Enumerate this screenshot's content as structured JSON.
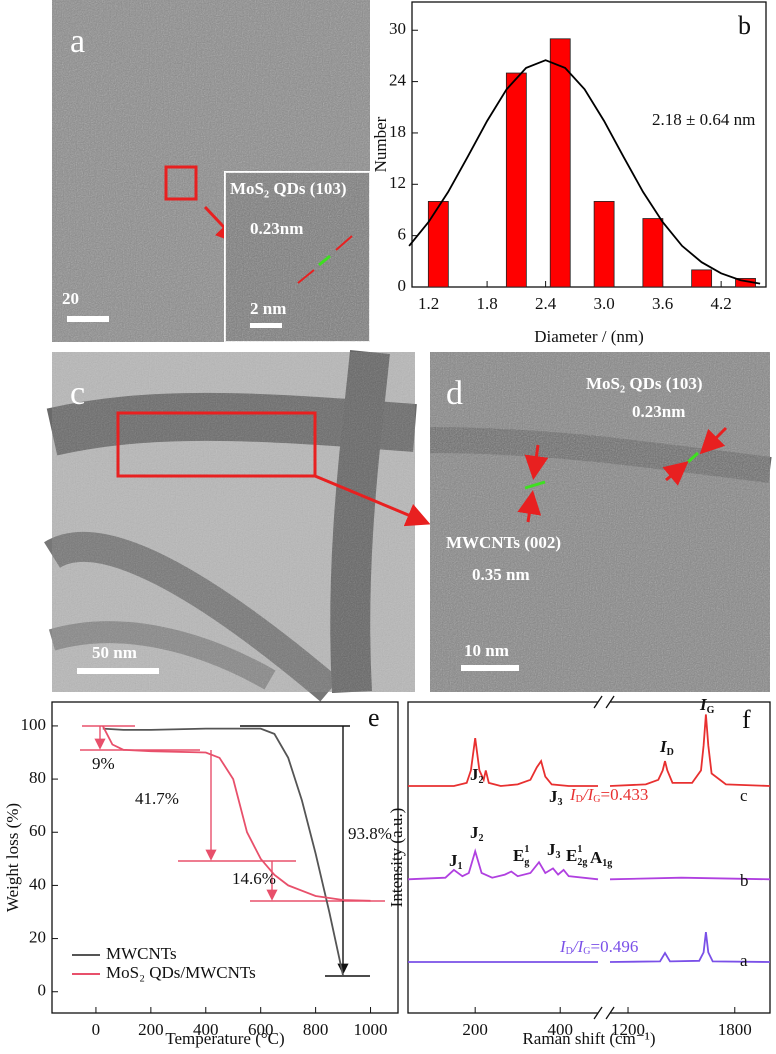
{
  "images": [
    {
      "label": "a",
      "scale_bar": "20",
      "inset": {
        "title": "MoS₂ QDs (103)",
        "spacing": "0.23nm",
        "scale_bar": "2 nm"
      }
    },
    {
      "label": "c",
      "scale_bar": "50 nm"
    },
    {
      "label": "d",
      "annotations": [
        "MoS₂ QDs (103)",
        "0.23nm",
        "MWCNTs (002)",
        "0.35 nm"
      ],
      "scale_bar": "10 nm"
    }
  ],
  "chart_data": [
    {
      "type": "bar",
      "label": "b",
      "xlabel": "Diameter / (nm)",
      "ylabel": "Number",
      "annotation": "2.18 ± 0.64 nm",
      "color": "#ff0000",
      "x": [
        1.3,
        2.1,
        2.55,
        3.0,
        3.5,
        4.0,
        4.45
      ],
      "values": [
        10,
        25,
        29,
        10,
        8,
        2,
        1
      ],
      "fit": {
        "color": "#000000",
        "x": [
          1.0,
          1.2,
          1.4,
          1.6,
          1.8,
          2.0,
          2.2,
          2.4,
          2.6,
          2.8,
          3.0,
          3.2,
          3.4,
          3.6,
          3.8,
          4.0,
          4.2,
          4.4,
          4.6
        ],
        "values": [
          4.8,
          7.6,
          11.1,
          15.2,
          19.4,
          23.1,
          25.6,
          26.5,
          25.6,
          23.1,
          19.4,
          15.2,
          11.1,
          7.6,
          4.8,
          2.9,
          1.6,
          0.8,
          0.4
        ]
      },
      "xlim": [
        1.03,
        4.66
      ],
      "ylim": [
        0,
        33.3
      ],
      "xticks": [
        1.2,
        1.8,
        2.4,
        {
          "value": 3,
          "label": "3.0"
        },
        3.6,
        4.2
      ],
      "yticks": [
        0,
        6,
        12,
        18,
        24,
        30
      ]
    },
    {
      "type": "line",
      "label": "e",
      "xlabel": "Temperature (°C)",
      "ylabel": "Weight loss (%)",
      "xlim": [
        -160,
        1100
      ],
      "ylim": [
        -8,
        109
      ],
      "xticks": [
        0,
        200,
        400,
        600,
        800,
        1000
      ],
      "yticks": [
        0,
        20,
        40,
        60,
        80,
        100
      ],
      "legend": "lower left",
      "annotations": [
        "9%",
        "41.7%",
        "14.6%",
        "93.8%"
      ],
      "series": [
        {
          "name": "MWCNTs",
          "color": "#555555",
          "x": [
            25,
            100,
            200,
            400,
            600,
            650,
            700,
            750,
            800,
            850,
            900
          ],
          "values": [
            99,
            98.5,
            98.5,
            99,
            99,
            97,
            88,
            72,
            52,
            30,
            6
          ]
        },
        {
          "name": "MoS₂ QDs/MWCNTs",
          "color": "#e8506b",
          "x": [
            25,
            60,
            100,
            200,
            400,
            450,
            500,
            550,
            600,
            650,
            700,
            800,
            900,
            1000
          ],
          "values": [
            100,
            93,
            91,
            90.5,
            90,
            88,
            80,
            60,
            50,
            44,
            40,
            36,
            34.5,
            34.2
          ]
        }
      ]
    },
    {
      "type": "line",
      "label": "f",
      "xlabel": "Raman shift (cm⁻¹)",
      "ylabel": "Intensity (a.u.)",
      "xlim": [
        42,
        1998
      ],
      "xbreak": [
        489,
        1099
      ],
      "ylim": [
        0,
        100
      ],
      "xticks": [
        200,
        400,
        1200,
        1800
      ],
      "series": [
        {
          "name": "c",
          "color": "#e83030",
          "x": [
            42,
            150,
            180,
            190,
            200,
            210,
            220,
            225,
            232,
            260,
            300,
            330,
            345,
            355,
            365,
            380,
            420,
            489,
            null,
            1099,
            1300,
            1370,
            1395,
            1408,
            1421,
            1450,
            1560,
            1610,
            1625,
            1638,
            1651,
            1670,
            1750,
            1998
          ],
          "values": [
            73,
            73,
            74,
            78,
            88.4,
            78,
            75,
            78,
            74,
            73,
            73.5,
            75,
            79,
            81,
            76,
            73.5,
            73,
            73,
            null,
            73,
            73.5,
            75,
            78,
            81,
            78,
            74,
            74,
            78,
            86,
            96,
            86,
            77,
            73.5,
            73
          ]
        },
        {
          "name": "b",
          "color": "#b040e0",
          "x": [
            42,
            130,
            150,
            170,
            185,
            200,
            215,
            240,
            270,
            285,
            300,
            330,
            350,
            365,
            383,
            395,
            408,
            420,
            489,
            null,
            1099,
            1500,
            1998
          ],
          "values": [
            43,
            43.5,
            46,
            44,
            45,
            52,
            45,
            43.5,
            44.5,
            45.5,
            44,
            45,
            48.5,
            45,
            46.5,
            44.5,
            46,
            44,
            43,
            null,
            43,
            43.5,
            43
          ]
        },
        {
          "name": "a",
          "color": "#7a50e8",
          "x": [
            42,
            489,
            null,
            1099,
            1380,
            1408,
            1436,
            1600,
            1625,
            1638,
            1651,
            1676,
            1998
          ],
          "values": [
            16.4,
            16.4,
            null,
            16.4,
            16.6,
            19.3,
            16.6,
            16.8,
            19.5,
            26,
            19.5,
            16.6,
            16.4
          ]
        }
      ],
      "peak_labels": [
        {
          "text": "J",
          "sub": "2"
        },
        {
          "text": "J",
          "sub": "3"
        },
        {
          "text": "I",
          "sub": "D"
        },
        {
          "text": "I",
          "sub": "G"
        },
        {
          "text": "J",
          "sub": "1"
        },
        {
          "text": "J",
          "sub": "2"
        },
        {
          "text": "E",
          "sub": "g",
          "sup": "1"
        },
        {
          "text": "J",
          "sub": "3"
        },
        {
          "text": "E",
          "sub": "2g",
          "sup": "1"
        },
        {
          "text": "A",
          "sub": "1g"
        }
      ],
      "ratios": [
        {
          "color": "#e83030",
          "runs": [
            {
              "text": "I"
            },
            {
              "text": "D",
              "shift": "sub"
            },
            {
              "text": "/I"
            },
            {
              "text": "G",
              "shift": "sub"
            },
            {
              "text": "=0.433"
            }
          ]
        },
        {
          "color": "#7a50e8",
          "runs": [
            {
              "text": "I"
            },
            {
              "text": "D",
              "shift": "sub"
            },
            {
              "text": "/I"
            },
            {
              "text": "G",
              "shift": "sub"
            },
            {
              "text": "=0.496"
            }
          ]
        }
      ]
    }
  ]
}
